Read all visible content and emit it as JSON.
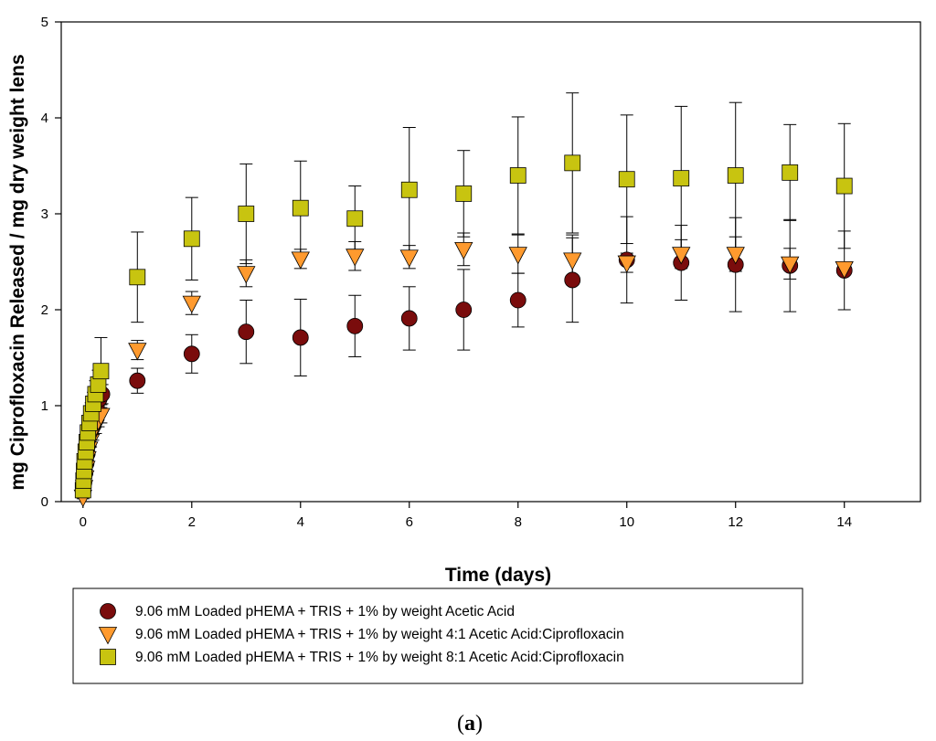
{
  "chart_data": {
    "type": "scatter",
    "title": "",
    "xlabel": "Time (days)",
    "ylabel": "mg Ciprofloxacin Released / mg dry weight lens",
    "xlim": [
      -0.4,
      15.4
    ],
    "ylim": [
      0,
      5
    ],
    "x_ticks": [
      0,
      2,
      4,
      6,
      8,
      10,
      12,
      14
    ],
    "y_ticks": [
      0,
      1,
      2,
      3,
      4,
      5
    ],
    "grid": false,
    "legend_position": "below-plot",
    "caption": {
      "open": "(",
      "letter": "a",
      "close": ")"
    },
    "series": [
      {
        "name": "9.06 mM Loaded pHEMA + TRIS + 1% by weight Acetic Acid",
        "marker": "circle",
        "color": "#7a0c0c",
        "points": [
          {
            "x": 0.0,
            "y": 0.1,
            "err": 0.02
          },
          {
            "x": 0.02,
            "y": 0.2,
            "err": 0.04
          },
          {
            "x": 0.04,
            "y": 0.3,
            "err": 0.05
          },
          {
            "x": 0.06,
            "y": 0.4,
            "err": 0.06
          },
          {
            "x": 0.08,
            "y": 0.5,
            "err": 0.07
          },
          {
            "x": 0.1,
            "y": 0.6,
            "err": 0.08
          },
          {
            "x": 0.13,
            "y": 0.7,
            "err": 0.09
          },
          {
            "x": 0.17,
            "y": 0.8,
            "err": 0.09
          },
          {
            "x": 0.21,
            "y": 0.9,
            "err": 0.1
          },
          {
            "x": 0.25,
            "y": 1.0,
            "err": 0.1
          },
          {
            "x": 0.3,
            "y": 1.07,
            "err": 0.1
          },
          {
            "x": 0.35,
            "y": 1.12,
            "err": 0.1
          },
          {
            "x": 1,
            "y": 1.26,
            "err": 0.13
          },
          {
            "x": 2,
            "y": 1.54,
            "err": 0.2
          },
          {
            "x": 3,
            "y": 1.77,
            "err": 0.33
          },
          {
            "x": 4,
            "y": 1.71,
            "err": 0.4
          },
          {
            "x": 5,
            "y": 1.83,
            "err": 0.32
          },
          {
            "x": 6,
            "y": 1.91,
            "err": 0.33
          },
          {
            "x": 7,
            "y": 2.0,
            "err": 0.42
          },
          {
            "x": 8,
            "y": 2.1,
            "err": 0.28
          },
          {
            "x": 9,
            "y": 2.31,
            "err": 0.44
          },
          {
            "x": 10,
            "y": 2.52,
            "err": 0.45
          },
          {
            "x": 11,
            "y": 2.49,
            "err": 0.39
          },
          {
            "x": 12,
            "y": 2.47,
            "err": 0.49
          },
          {
            "x": 13,
            "y": 2.46,
            "err": 0.48
          },
          {
            "x": 14,
            "y": 2.41,
            "err": 0.41
          }
        ]
      },
      {
        "name": "9.06 mM Loaded pHEMA + TRIS + 1% by weight 4:1 Acetic Acid:Ciprofloxacin",
        "marker": "triangle-down",
        "color": "#ff9a2e",
        "points": [
          {
            "x": 0.0,
            "y": 0.05,
            "err": 0.02
          },
          {
            "x": 0.02,
            "y": 0.15,
            "err": 0.03
          },
          {
            "x": 0.04,
            "y": 0.25,
            "err": 0.04
          },
          {
            "x": 0.06,
            "y": 0.35,
            "err": 0.05
          },
          {
            "x": 0.08,
            "y": 0.45,
            "err": 0.05
          },
          {
            "x": 0.11,
            "y": 0.55,
            "err": 0.06
          },
          {
            "x": 0.14,
            "y": 0.63,
            "err": 0.06
          },
          {
            "x": 0.18,
            "y": 0.71,
            "err": 0.07
          },
          {
            "x": 0.23,
            "y": 0.78,
            "err": 0.07
          },
          {
            "x": 0.28,
            "y": 0.85,
            "err": 0.07
          },
          {
            "x": 0.33,
            "y": 0.9,
            "err": 0.08
          },
          {
            "x": 1,
            "y": 1.58,
            "err": 0.1
          },
          {
            "x": 2,
            "y": 2.07,
            "err": 0.12
          },
          {
            "x": 3,
            "y": 2.38,
            "err": 0.14
          },
          {
            "x": 4,
            "y": 2.53,
            "err": 0.1
          },
          {
            "x": 5,
            "y": 2.56,
            "err": 0.15
          },
          {
            "x": 6,
            "y": 2.55,
            "err": 0.12
          },
          {
            "x": 7,
            "y": 2.63,
            "err": 0.17
          },
          {
            "x": 8,
            "y": 2.58,
            "err": 0.2
          },
          {
            "x": 9,
            "y": 2.52,
            "err": 0.26
          },
          {
            "x": 10,
            "y": 2.49,
            "err": 0.1
          },
          {
            "x": 11,
            "y": 2.58,
            "err": 0.15
          },
          {
            "x": 12,
            "y": 2.58,
            "err": 0.18
          },
          {
            "x": 13,
            "y": 2.48,
            "err": 0.16
          },
          {
            "x": 14,
            "y": 2.43,
            "err": 0.05
          }
        ]
      },
      {
        "name": "9.06 mM Loaded pHEMA + TRIS + 1% by weight 8:1 Acetic Acid:Ciprofloxacin",
        "marker": "square",
        "color": "#c8c410",
        "points": [
          {
            "x": 0.0,
            "y": 0.12,
            "err": 0.03
          },
          {
            "x": 0.01,
            "y": 0.22,
            "err": 0.04
          },
          {
            "x": 0.02,
            "y": 0.32,
            "err": 0.05
          },
          {
            "x": 0.03,
            "y": 0.42,
            "err": 0.06
          },
          {
            "x": 0.05,
            "y": 0.52,
            "err": 0.07
          },
          {
            "x": 0.07,
            "y": 0.62,
            "err": 0.08
          },
          {
            "x": 0.09,
            "y": 0.72,
            "err": 0.09
          },
          {
            "x": 0.12,
            "y": 0.82,
            "err": 0.1
          },
          {
            "x": 0.15,
            "y": 0.92,
            "err": 0.11
          },
          {
            "x": 0.19,
            "y": 1.02,
            "err": 0.12
          },
          {
            "x": 0.23,
            "y": 1.12,
            "err": 0.14
          },
          {
            "x": 0.28,
            "y": 1.22,
            "err": 0.15
          },
          {
            "x": 0.33,
            "y": 1.36,
            "err": 0.35
          },
          {
            "x": 1,
            "y": 2.34,
            "err": 0.47
          },
          {
            "x": 2,
            "y": 2.74,
            "err": 0.43
          },
          {
            "x": 3,
            "y": 3.0,
            "err": 0.52
          },
          {
            "x": 4,
            "y": 3.06,
            "err": 0.49
          },
          {
            "x": 5,
            "y": 2.95,
            "err": 0.34
          },
          {
            "x": 6,
            "y": 3.25,
            "err": 0.65
          },
          {
            "x": 7,
            "y": 3.21,
            "err": 0.45
          },
          {
            "x": 8,
            "y": 3.4,
            "err": 0.61
          },
          {
            "x": 9,
            "y": 3.53,
            "err": 0.73
          },
          {
            "x": 10,
            "y": 3.36,
            "err": 0.67
          },
          {
            "x": 11,
            "y": 3.37,
            "err": 0.75
          },
          {
            "x": 12,
            "y": 3.4,
            "err": 0.76
          },
          {
            "x": 13,
            "y": 3.43,
            "err": 0.5
          },
          {
            "x": 14,
            "y": 3.29,
            "err": 0.65
          }
        ]
      }
    ]
  }
}
